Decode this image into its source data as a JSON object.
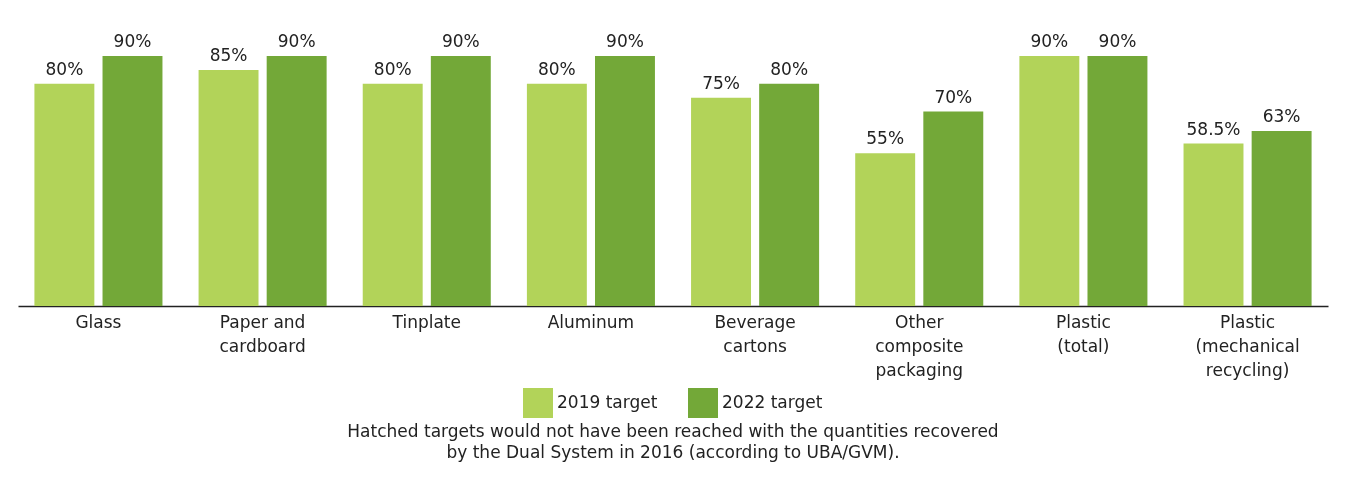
{
  "chart_data": {
    "type": "bar",
    "categories": [
      "Glass",
      "Paper and cardboard",
      "Tinplate",
      "Aluminum",
      "Beverage cartons",
      "Other composite packaging",
      "Plastic (total)",
      "Plastic (mechanical recycling)"
    ],
    "series": [
      {
        "name": "2019 target",
        "color": "#b2d359",
        "values": [
          80,
          85,
          80,
          80,
          75,
          55,
          90,
          58.5
        ],
        "value_labels": [
          "80%",
          "85%",
          "80%",
          "80%",
          "75%",
          "55%",
          "90%",
          "58.5%"
        ]
      },
      {
        "name": "2022 target",
        "color": "#73a838",
        "values": [
          90,
          90,
          90,
          90,
          80,
          70,
          90,
          63
        ],
        "value_labels": [
          "90%",
          "90%",
          "90%",
          "90%",
          "80%",
          "70%",
          "90%",
          "63%"
        ]
      }
    ],
    "legend": "bottom",
    "tick_labels": "x",
    "annotations": [
      "Hatched targets would not have been reached with the quantities recovered\nby the Dual System in 2016 (according to UBA/GVM)."
    ]
  }
}
